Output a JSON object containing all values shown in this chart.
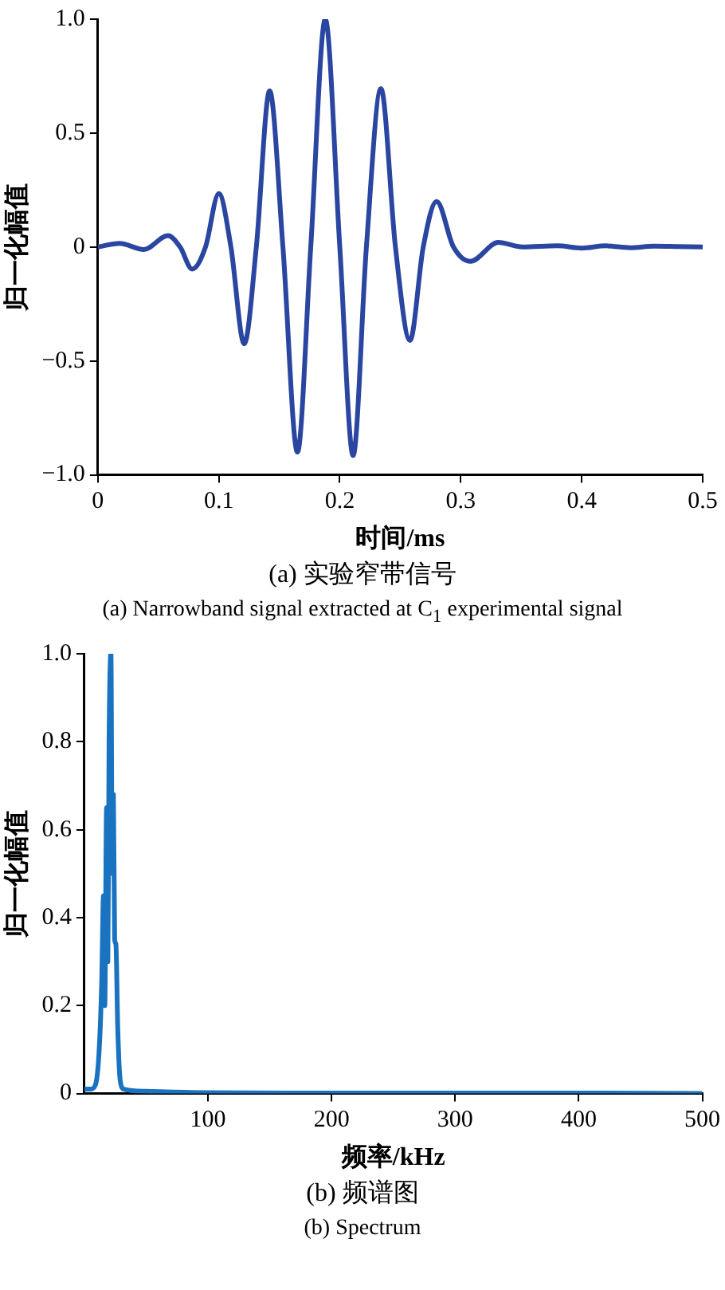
{
  "chart_data": [
    {
      "type": "line",
      "xlabel": "时间/ms",
      "ylabel": "归一化幅值",
      "annotations": [
        "(a) 实验窄带信号",
        "(a) Narrowband signal extracted at C$_{1}$ experimental signal"
      ],
      "x": [
        0,
        0.018,
        0.038,
        0.058,
        0.068,
        0.078,
        0.089,
        0.1,
        0.11,
        0.121,
        0.131,
        0.142,
        0.153,
        0.165,
        0.176,
        0.188,
        0.2,
        0.211,
        0.222,
        0.234,
        0.246,
        0.258,
        0.269,
        0.28,
        0.294,
        0.308,
        0.331,
        0.351,
        0.38,
        0.4,
        0.42,
        0.44,
        0.46,
        0.48,
        0.5
      ],
      "series": [
        {
          "color": "#2a46a0",
          "values": [
            0,
            0.016,
            -0.011,
            0.05,
            0,
            -0.097,
            0,
            0.235,
            0,
            -0.425,
            0,
            0.685,
            0,
            -0.9,
            0,
            1.0,
            0,
            -0.915,
            0,
            0.695,
            0,
            -0.41,
            0,
            0.2,
            0,
            -0.063,
            0.02,
            0,
            0.005,
            -0.005,
            0.005,
            -0.003,
            0.004,
            0.002,
            0
          ]
        }
      ],
      "xlim": [
        0,
        0.5
      ],
      "xticks": [
        0,
        0.1,
        0.2,
        0.3,
        0.4,
        0.5
      ],
      "ylim": [
        -1,
        1
      ],
      "yticks": [
        {
          "value": -1,
          "label": "−1.0"
        },
        {
          "value": -0.5,
          "label": "−0.5"
        },
        0,
        0.5,
        {
          "value": 1,
          "label": "1.0"
        }
      ],
      "grid": false,
      "marker": "none",
      "line_style": "solid",
      "legend": false
    },
    {
      "type": "line",
      "xlabel": "频率/kHz",
      "ylabel": "归一化幅值",
      "annotations": [
        "(b) 频谱图",
        "(b)  Spectrum"
      ],
      "x": [
        0,
        5,
        9,
        12,
        14,
        15.5,
        16.5,
        18,
        19,
        20,
        21.5,
        22.5,
        23.5,
        24.5,
        25.5,
        27,
        29,
        32,
        50,
        100,
        200,
        300,
        400,
        500
      ],
      "series": [
        {
          "color": "#1a73c0",
          "values": [
            0.01,
            0.01,
            0.02,
            0.1,
            0.25,
            0.45,
            0.2,
            0.65,
            0.3,
            0.8,
            1.0,
            0.5,
            0.68,
            0.35,
            0.34,
            0.15,
            0.03,
            0.01,
            0.005,
            0.002,
            0.001,
            0.001,
            0.001,
            0
          ]
        }
      ],
      "xlim": [
        0,
        500
      ],
      "xticks": [
        100,
        200,
        300,
        400,
        500
      ],
      "ylim": [
        0,
        1
      ],
      "yticks": [
        0,
        0.2,
        0.4,
        0.6,
        0.8,
        {
          "value": 1,
          "label": "1.0"
        }
      ],
      "grid": false,
      "marker": "none",
      "line_style": "solid",
      "legend": false
    }
  ]
}
